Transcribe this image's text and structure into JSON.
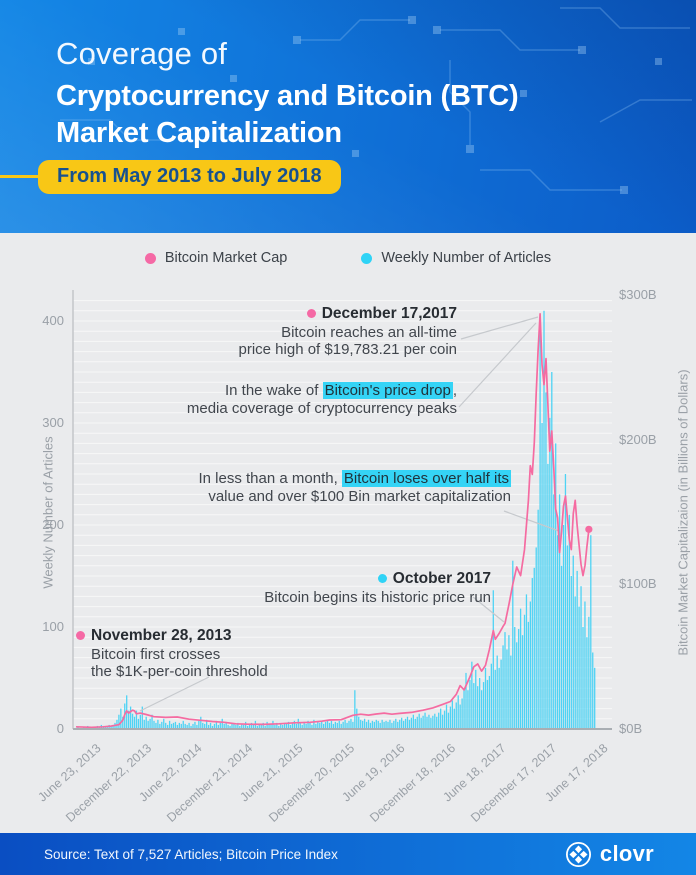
{
  "header": {
    "title_light": "Coverage of",
    "title_bold_line1": "Cryptocurrency and Bitcoin (BTC)",
    "title_bold_line2": "Market Capitalization",
    "date_range_pill": "From May 2013 to July 2018",
    "accent_yellow": "#f8c716",
    "background_blue": "#0f6fd6"
  },
  "legend": {
    "bitcoin_market_cap": {
      "label": "Bitcoin Market Cap",
      "color": "#f569a5"
    },
    "weekly_articles": {
      "label": "Weekly Number of Articles",
      "color": "#2fd3f6"
    }
  },
  "annotations": {
    "nov28_2013": {
      "dot_color": "#f569a5",
      "title": "November 28, 2013",
      "line1": "Bitcoin first crosses",
      "line2": "the $1K-per-coin threshold"
    },
    "oct_2017": {
      "dot_color": "#2fd3f6",
      "title": "October 2017",
      "line1": "Bitcoin begins its historic price run"
    },
    "dec17_2017": {
      "dot_color": "#f569a5",
      "title": "December 17,2017",
      "line1": "Bitcoin reaches an all-time",
      "line2": "price high of $19,783.21 per coin"
    },
    "price_drop": {
      "line1_pre": "In the wake of ",
      "line1_highlight": "Bitcoin's price drop",
      "line1_post": ",",
      "line2": "media coverage of cryptocurrency peaks"
    },
    "loses_half": {
      "line1_pre": "In less than a month, ",
      "line1_highlight": "Bitcoin loses over half its",
      "line2": "value and over $100 Bin market capitalization"
    }
  },
  "footer": {
    "source": "Source: Text of 7,527 Articles; Bitcoin Price Index",
    "brand": "clovr"
  },
  "chart_data": {
    "type": "combo",
    "title": "Coverage of Cryptocurrency and Bitcoin (BTC) Market Capitalization, May 2013 to July 2018",
    "x_axis": {
      "tick_labels": [
        "June 23, 2013",
        "December 22, 2013",
        "June 22, 2014",
        "December 21, 2014",
        "June 21, 2015",
        "December 20, 2015",
        "June 19, 2016",
        "December 18, 2016",
        "June 18, 2017",
        "December 17, 2017",
        "June 17, 2018"
      ],
      "tick_week_index": [
        4,
        30,
        56,
        82,
        108,
        134,
        160,
        186,
        212,
        238,
        264
      ],
      "weeks_total": 267
    },
    "y_axis_left": {
      "label": "Weekly Number of Articles",
      "ticks": [
        0,
        100,
        200,
        300,
        400
      ],
      "max": 430
    },
    "y_axis_right": {
      "label": "Bitcoin Market Capitalizaion (in Billions of Dollars)",
      "tick_labels": [
        "$0B",
        "$100B",
        "$200B",
        "$300B"
      ],
      "tick_values": [
        0,
        100,
        200,
        300
      ],
      "max": 300
    },
    "series": [
      {
        "name": "Weekly Number of Articles",
        "type": "bar",
        "color": "#4ed3f4",
        "values_weekly": [
          1,
          2,
          1,
          0,
          2,
          1,
          3,
          2,
          1,
          2,
          2,
          3,
          2,
          4,
          3,
          2,
          3,
          4,
          3,
          4,
          6,
          9,
          14,
          20,
          12,
          25,
          33,
          18,
          22,
          15,
          12,
          18,
          10,
          14,
          22,
          9,
          12,
          8,
          10,
          14,
          8,
          6,
          9,
          5,
          7,
          10,
          6,
          4,
          8,
          5,
          6,
          7,
          4,
          6,
          5,
          8,
          5,
          4,
          6,
          3,
          5,
          7,
          4,
          8,
          12,
          6,
          5,
          9,
          4,
          6,
          3,
          5,
          8,
          4,
          6,
          10,
          5,
          7,
          4,
          3,
          6,
          5,
          4,
          6,
          3,
          5,
          4,
          7,
          3,
          5,
          6,
          4,
          8,
          3,
          5,
          4,
          6,
          3,
          7,
          4,
          5,
          8,
          4,
          6,
          3,
          5,
          4,
          6,
          5,
          7,
          4,
          6,
          8,
          5,
          10,
          6,
          4,
          7,
          5,
          8,
          6,
          4,
          9,
          5,
          7,
          6,
          8,
          5,
          7,
          9,
          6,
          8,
          5,
          7,
          6,
          8,
          5,
          7,
          9,
          6,
          8,
          10,
          7,
          38,
          20,
          12,
          9,
          8,
          10,
          7,
          9,
          6,
          8,
          7,
          9,
          8,
          6,
          9,
          7,
          8,
          7,
          9,
          6,
          8,
          10,
          7,
          9,
          11,
          8,
          10,
          12,
          9,
          11,
          14,
          10,
          12,
          15,
          11,
          13,
          16,
          12,
          14,
          11,
          13,
          15,
          12,
          16,
          20,
          14,
          18,
          24,
          16,
          22,
          28,
          20,
          26,
          33,
          24,
          30,
          40,
          55,
          38,
          48,
          66,
          45,
          58,
          42,
          50,
          38,
          46,
          60,
          48,
          52,
          64,
          136,
          58,
          72,
          60,
          68,
          82,
          95,
          78,
          92,
          72,
          165,
          100,
          85,
          98,
          118,
          92,
          112,
          132,
          105,
          125,
          148,
          158,
          178,
          215,
          394,
          300,
          410,
          330,
          260,
          305,
          350,
          230,
          280,
          190,
          230,
          160,
          200,
          250,
          180,
          210,
          150,
          170,
          130,
          155,
          120,
          140,
          100,
          125,
          90,
          110,
          190,
          75,
          60
        ]
      },
      {
        "name": "Bitcoin Market Cap",
        "type": "line",
        "color": "#f56ba1",
        "unit": "billions_usd",
        "end_dot": true,
        "waypoints_week_value": [
          [
            0,
            1.5
          ],
          [
            8,
            1.2
          ],
          [
            14,
            1.5
          ],
          [
            18,
            2
          ],
          [
            22,
            3
          ],
          [
            24,
            6
          ],
          [
            25,
            10
          ],
          [
            26,
            12.5
          ],
          [
            27,
            11
          ],
          [
            28,
            12
          ],
          [
            29,
            13
          ],
          [
            30,
            12.5
          ],
          [
            31,
            10.5
          ],
          [
            33,
            11
          ],
          [
            36,
            10
          ],
          [
            40,
            8.5
          ],
          [
            46,
            8
          ],
          [
            52,
            8.3
          ],
          [
            58,
            6.8
          ],
          [
            64,
            6
          ],
          [
            70,
            5.2
          ],
          [
            76,
            4.6
          ],
          [
            82,
            3.6
          ],
          [
            88,
            3.3
          ],
          [
            96,
            3.2
          ],
          [
            104,
            3.6
          ],
          [
            112,
            4.3
          ],
          [
            120,
            4.6
          ],
          [
            126,
            5.4
          ],
          [
            130,
            6.2
          ],
          [
            136,
            6.4
          ],
          [
            142,
            9.5
          ],
          [
            146,
            10.2
          ],
          [
            150,
            9.6
          ],
          [
            154,
            10.4
          ],
          [
            158,
            11
          ],
          [
            162,
            10.2
          ],
          [
            166,
            10.8
          ],
          [
            172,
            11.5
          ],
          [
            178,
            13
          ],
          [
            183,
            14.6
          ],
          [
            188,
            17
          ],
          [
            192,
            19
          ],
          [
            195,
            24
          ],
          [
            197,
            30
          ],
          [
            199,
            27
          ],
          [
            202,
            36
          ],
          [
            204,
            43
          ],
          [
            206,
            45
          ],
          [
            208,
            40
          ],
          [
            210,
            44
          ],
          [
            212,
            55
          ],
          [
            214,
            68
          ],
          [
            215,
            62
          ],
          [
            217,
            66
          ],
          [
            219,
            71
          ],
          [
            220,
            73
          ],
          [
            222,
            86
          ],
          [
            224,
            100
          ],
          [
            226,
            112
          ],
          [
            228,
            106
          ],
          [
            230,
            124
          ],
          [
            232,
            158
          ],
          [
            233,
            182
          ],
          [
            234,
            176
          ],
          [
            235,
            198
          ],
          [
            236,
            232
          ],
          [
            237,
            262
          ],
          [
            238,
            287
          ],
          [
            239,
            252
          ],
          [
            240,
            238
          ],
          [
            241,
            256
          ],
          [
            242,
            224
          ],
          [
            243,
            192
          ],
          [
            244,
            206
          ],
          [
            245,
            180
          ],
          [
            246,
            152
          ],
          [
            247,
            146
          ],
          [
            248,
            122
          ],
          [
            249,
            136
          ],
          [
            250,
            154
          ],
          [
            251,
            161
          ],
          [
            252,
            146
          ],
          [
            253,
            131
          ],
          [
            254,
            124
          ],
          [
            255,
            149
          ],
          [
            256,
            158
          ],
          [
            257,
            141
          ],
          [
            258,
            127
          ],
          [
            259,
            114
          ],
          [
            260,
            106
          ],
          [
            261,
            113
          ],
          [
            262,
            126
          ],
          [
            263,
            138
          ]
        ]
      }
    ]
  }
}
